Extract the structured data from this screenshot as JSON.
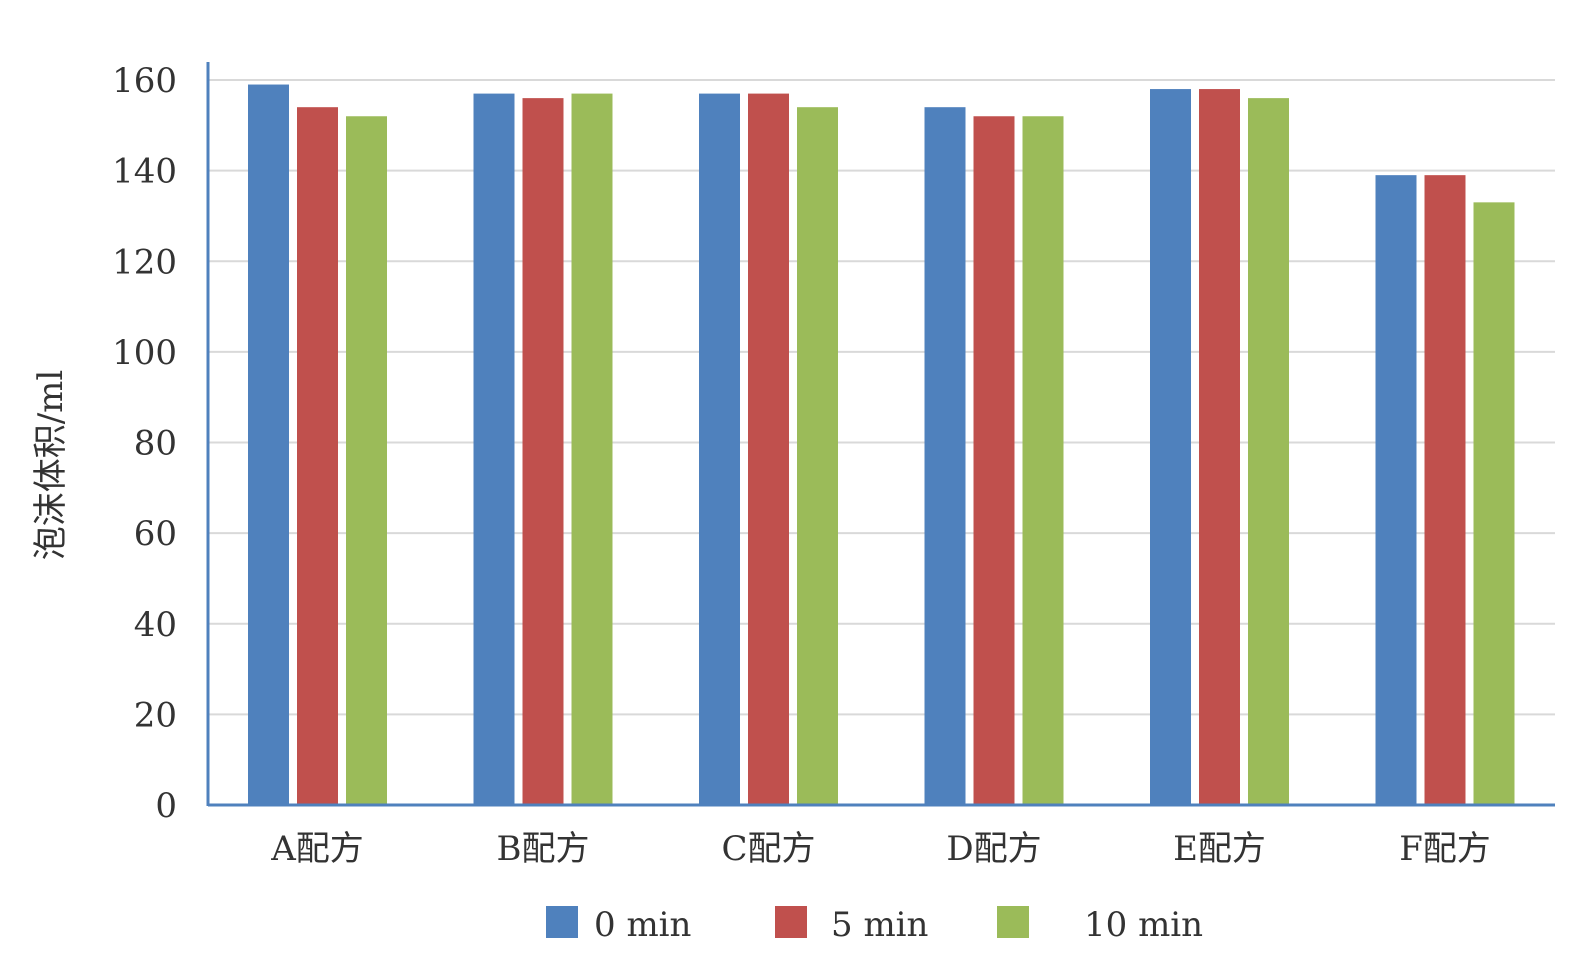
{
  "chart_data": {
    "type": "bar",
    "title": "",
    "xlabel": "",
    "ylabel": "泡沫体积/ml",
    "ylim": [
      0,
      160
    ],
    "yticks": [
      0,
      20,
      40,
      60,
      80,
      100,
      120,
      140,
      160
    ],
    "grid": true,
    "legend_position": "bottom",
    "categories": [
      "A配方",
      "B配方",
      "C配方",
      "D配方",
      "E配方",
      "F配方"
    ],
    "series": [
      {
        "name": "0 min",
        "color": "#4F81BD",
        "values": [
          159,
          157,
          157,
          154,
          158,
          139
        ]
      },
      {
        "name": "5 min",
        "color": "#C0504D",
        "values": [
          154,
          156,
          157,
          152,
          158,
          139
        ]
      },
      {
        "name": "10 min",
        "color": "#9BBB59",
        "values": [
          152,
          157,
          154,
          152,
          156,
          133
        ]
      }
    ]
  },
  "colors": {
    "axis": "#4F81BD",
    "grid": "#D9D9D9",
    "text": "#333333"
  }
}
